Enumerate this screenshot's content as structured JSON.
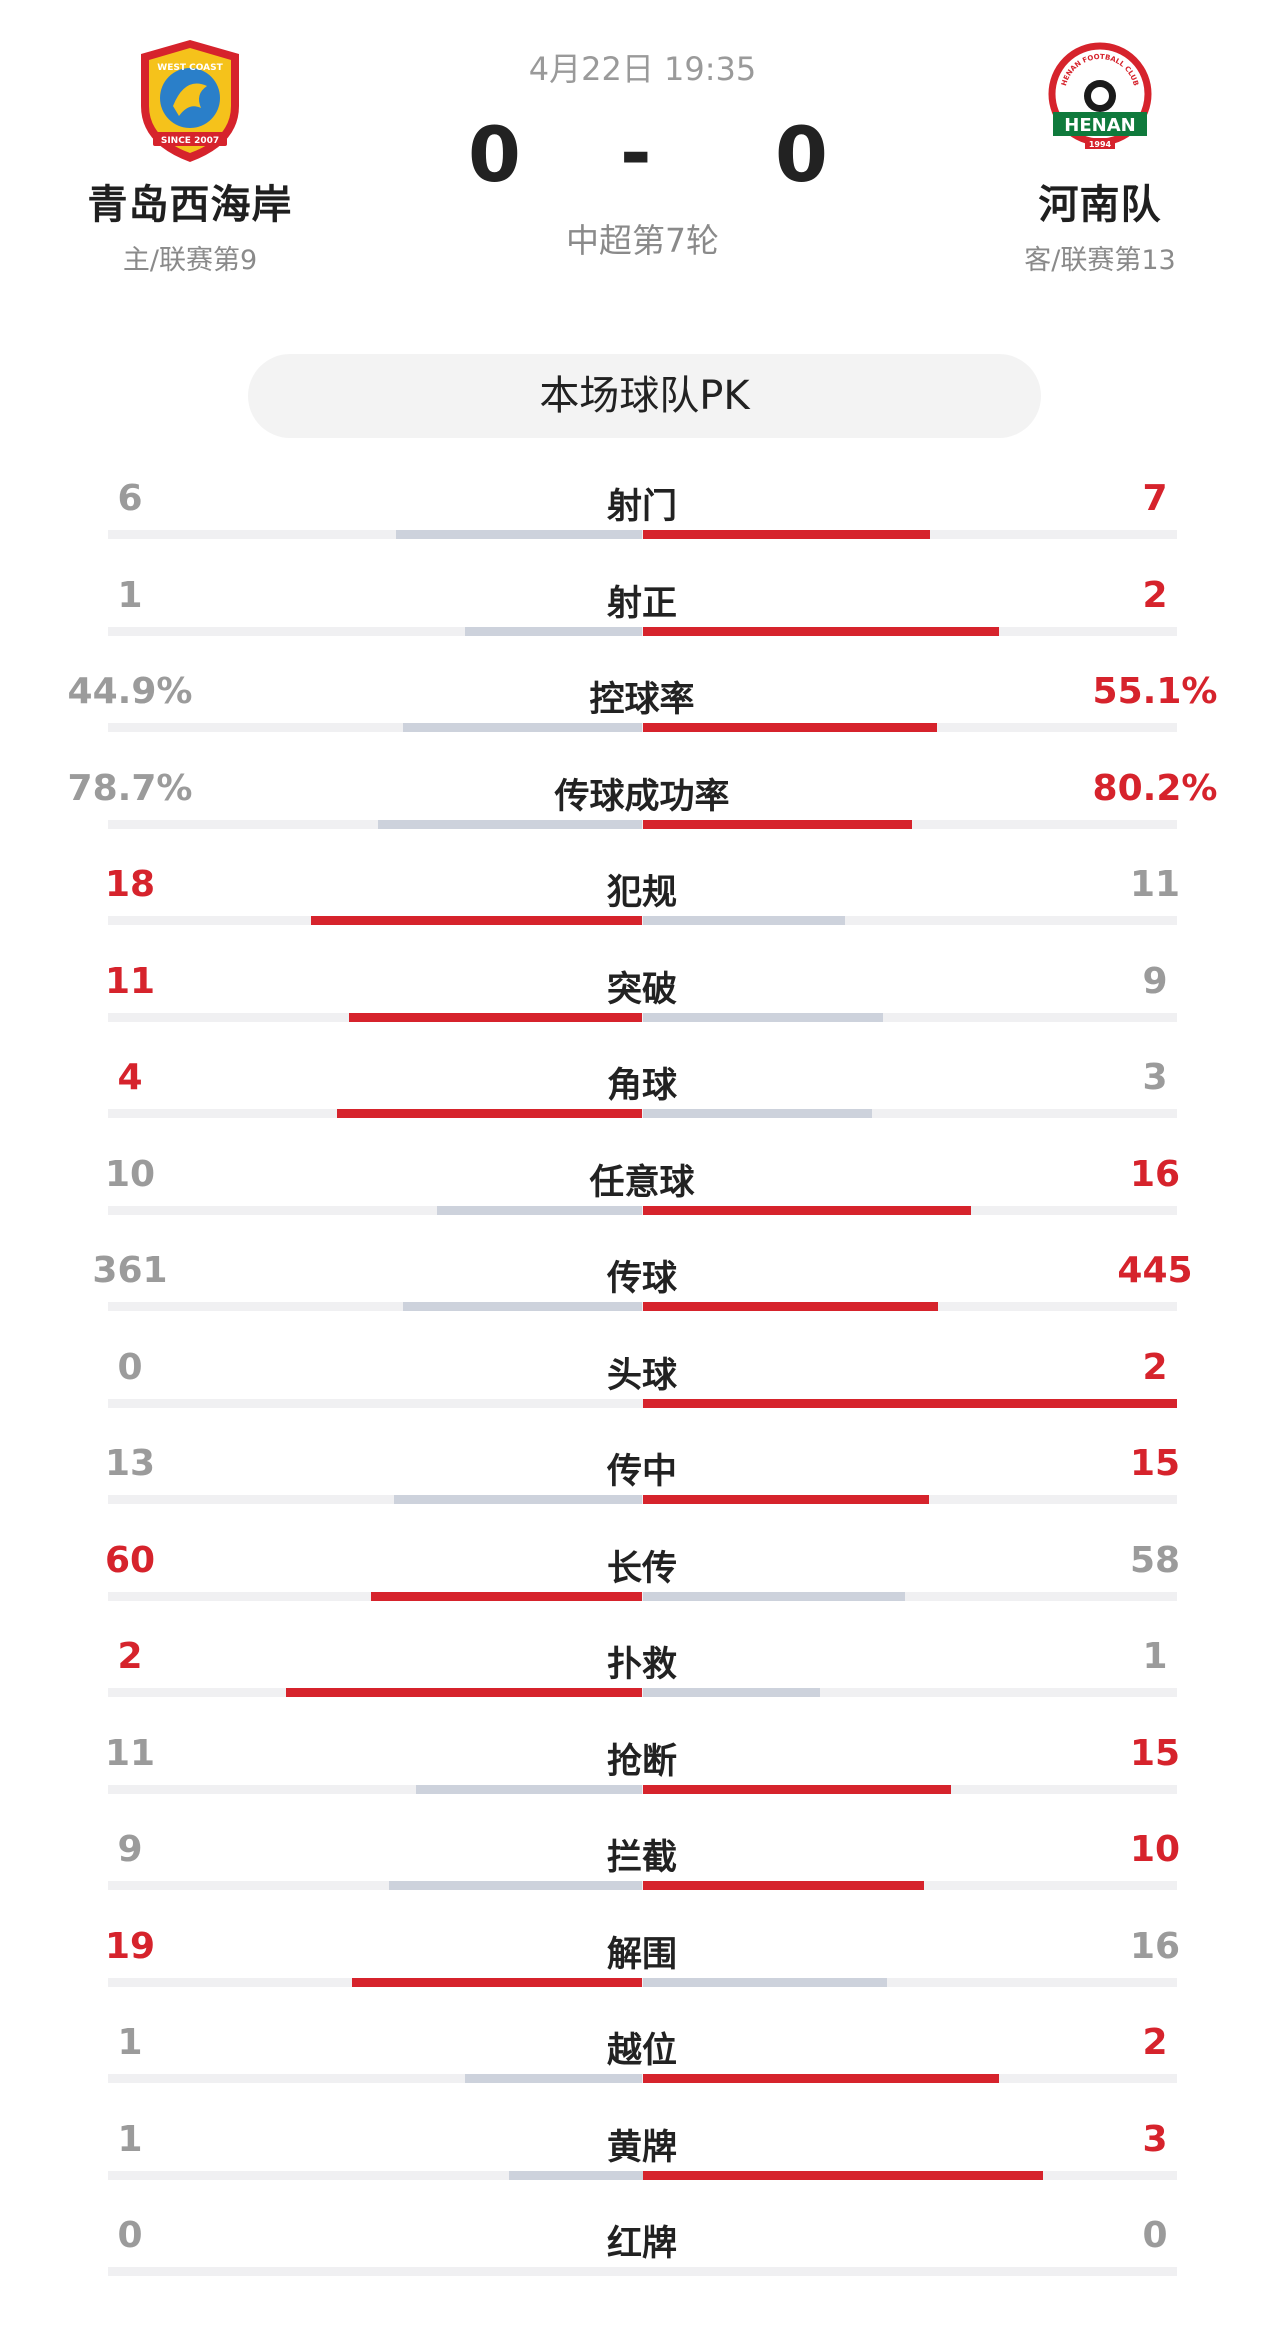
{
  "match": {
    "datetime": "4月22日 19:35",
    "home_score": "0",
    "separator": "-",
    "away_score": "0",
    "round": "中超第7轮"
  },
  "home": {
    "name": "青岛西海岸",
    "sub": "主/联赛第9",
    "logo_text": "WEST COAST",
    "logo_since": "SINCE 2007",
    "color": "#d6232c"
  },
  "away": {
    "name": "河南队",
    "sub": "客/联赛第13",
    "logo_text": "HENAN",
    "logo_club": "HENAN FOOTBALL CLUB",
    "logo_year": "1994",
    "color": "#0f7a3c"
  },
  "pk_title": "本场球队PK",
  "stats": [
    {
      "label": "射门",
      "home": "6",
      "away": "7",
      "home_share": 0.462,
      "away_share": 0.538
    },
    {
      "label": "射正",
      "home": "1",
      "away": "2",
      "home_share": 0.333,
      "away_share": 0.667
    },
    {
      "label": "控球率",
      "home": "44.9%",
      "away": "55.1%",
      "home_share": 0.449,
      "away_share": 0.551
    },
    {
      "label": "传球成功率",
      "home": "78.7%",
      "away": "80.2%",
      "home_share": 0.495,
      "away_share": 0.505
    },
    {
      "label": "犯规",
      "home": "18",
      "away": "11",
      "home_share": 0.621,
      "away_share": 0.379
    },
    {
      "label": "突破",
      "home": "11",
      "away": "9",
      "home_share": 0.55,
      "away_share": 0.45
    },
    {
      "label": "角球",
      "home": "4",
      "away": "3",
      "home_share": 0.571,
      "away_share": 0.429
    },
    {
      "label": "任意球",
      "home": "10",
      "away": "16",
      "home_share": 0.385,
      "away_share": 0.615
    },
    {
      "label": "传球",
      "home": "361",
      "away": "445",
      "home_share": 0.448,
      "away_share": 0.552
    },
    {
      "label": "头球",
      "home": "0",
      "away": "2",
      "home_share": 0.0,
      "away_share": 1.0
    },
    {
      "label": "传中",
      "home": "13",
      "away": "15",
      "home_share": 0.464,
      "away_share": 0.536
    },
    {
      "label": "长传",
      "home": "60",
      "away": "58",
      "home_share": 0.508,
      "away_share": 0.492
    },
    {
      "label": "扑救",
      "home": "2",
      "away": "1",
      "home_share": 0.667,
      "away_share": 0.333
    },
    {
      "label": "抢断",
      "home": "11",
      "away": "15",
      "home_share": 0.423,
      "away_share": 0.577
    },
    {
      "label": "拦截",
      "home": "9",
      "away": "10",
      "home_share": 0.474,
      "away_share": 0.526
    },
    {
      "label": "解围",
      "home": "19",
      "away": "16",
      "home_share": 0.543,
      "away_share": 0.457
    },
    {
      "label": "越位",
      "home": "1",
      "away": "2",
      "home_share": 0.333,
      "away_share": 0.667
    },
    {
      "label": "黄牌",
      "home": "1",
      "away": "3",
      "home_share": 0.25,
      "away_share": 0.75
    },
    {
      "label": "红牌",
      "home": "0",
      "away": "0",
      "home_share": 0.0,
      "away_share": 0.0
    }
  ],
  "colors": {
    "leader": "#d6232c",
    "trailer": "#cdd2dc",
    "track": "#f0f0f2"
  }
}
